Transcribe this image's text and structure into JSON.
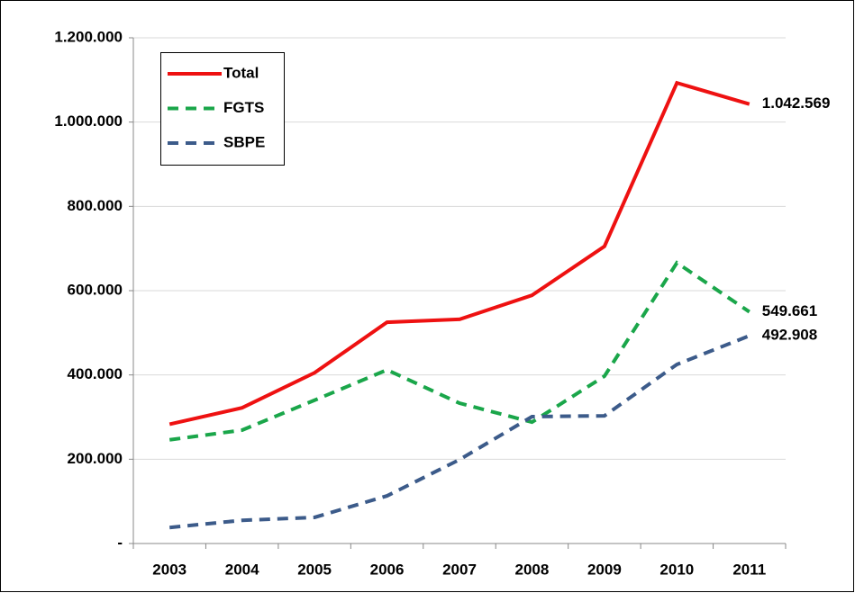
{
  "chart_data": {
    "type": "line",
    "categories": [
      "2003",
      "2004",
      "2005",
      "2006",
      "2007",
      "2008",
      "2009",
      "2010",
      "2011"
    ],
    "series": [
      {
        "name": "Total",
        "color": "#ee1111",
        "dash": false,
        "values": [
          283000,
          322000,
          405000,
          525000,
          532000,
          589000,
          705000,
          1093000,
          1042569
        ],
        "value_labels": [
          null,
          null,
          null,
          null,
          null,
          null,
          null,
          null,
          "1.042.569"
        ]
      },
      {
        "name": "FGTS",
        "color": "#1aa64a",
        "dash": true,
        "values": [
          246000,
          269000,
          340000,
          412000,
          333000,
          288000,
          397000,
          666000,
          549661
        ],
        "value_labels": [
          null,
          null,
          null,
          null,
          null,
          null,
          null,
          null,
          "549.661"
        ]
      },
      {
        "name": "SBPE",
        "color": "#3c5b8a",
        "dash": true,
        "values": [
          38000,
          55000,
          62000,
          113000,
          199000,
          301000,
          303000,
          425000,
          492908
        ],
        "value_labels": [
          null,
          null,
          null,
          null,
          null,
          null,
          null,
          null,
          "492.908"
        ]
      }
    ],
    "ylim": [
      0,
      1200000
    ],
    "yticks": [
      {
        "value": 0,
        "label": "-"
      },
      {
        "value": 200000,
        "label": "200.000"
      },
      {
        "value": 400000,
        "label": "400.000"
      },
      {
        "value": 600000,
        "label": "600.000"
      },
      {
        "value": 800000,
        "label": "800.000"
      },
      {
        "value": 1000000,
        "label": "1.000.000"
      },
      {
        "value": 1200000,
        "label": "1.200.000"
      }
    ],
    "grid": true,
    "legend": "upper left"
  }
}
